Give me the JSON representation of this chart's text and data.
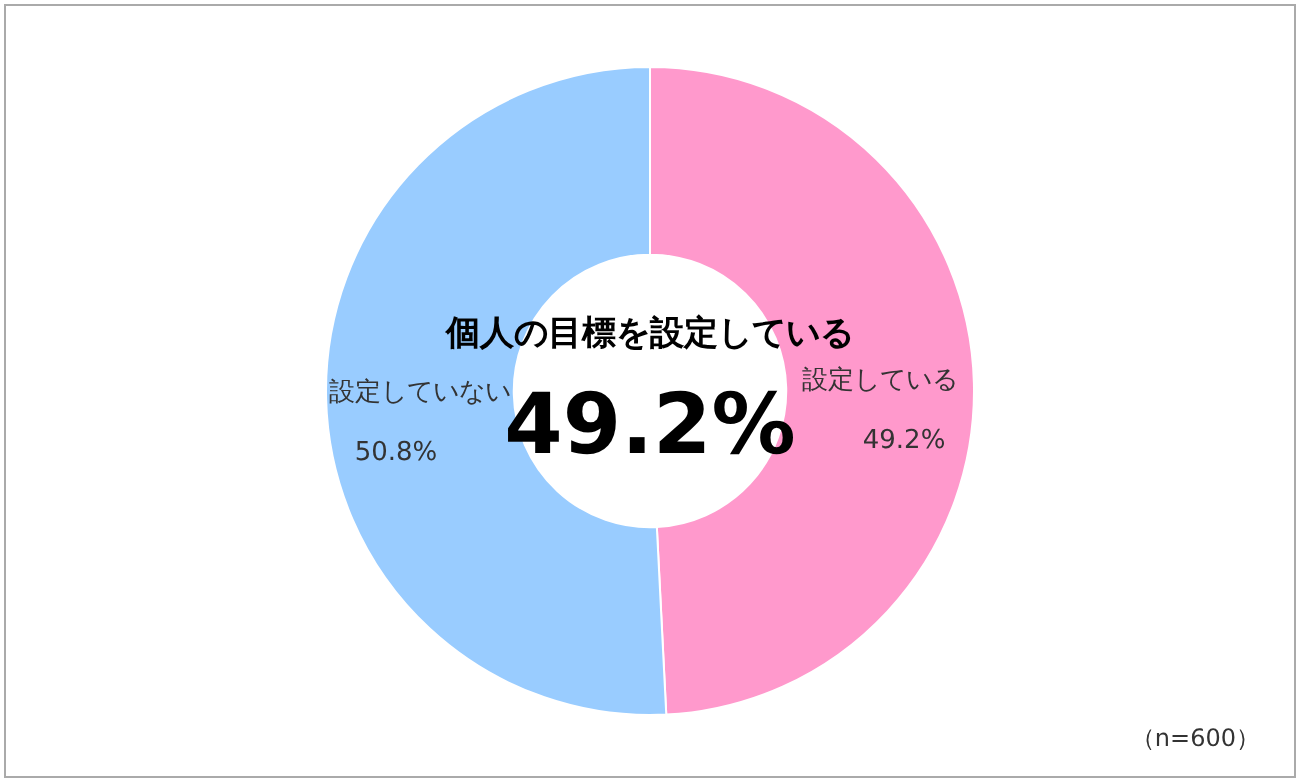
{
  "chart_data": {
    "type": "donut",
    "title": "個人の目標を設定している",
    "categories": [
      "設定している",
      "設定していない"
    ],
    "values": [
      49.2,
      50.8
    ],
    "colors": [
      "#ff99cc",
      "#99ccff"
    ],
    "value_labels": [
      "49.2%",
      "50.8%"
    ],
    "annotations": [
      "49.2%",
      "（n=600）"
    ],
    "legend": false
  }
}
